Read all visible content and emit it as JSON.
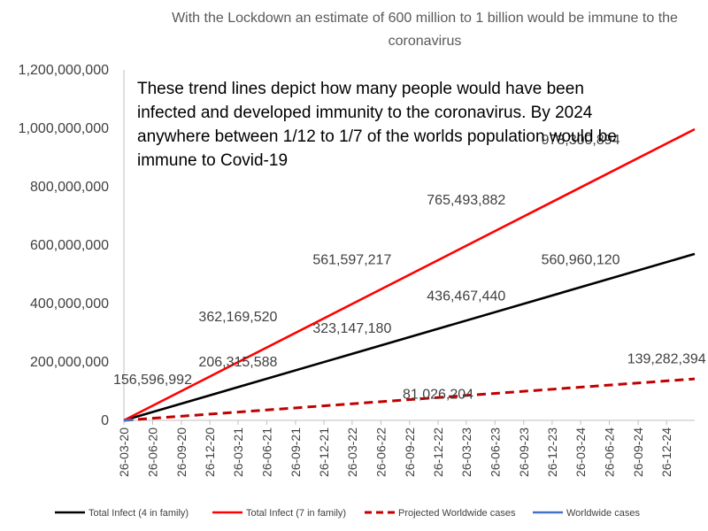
{
  "chart_data": {
    "type": "line",
    "title": "With the Lockdown an estimate of 600 million to 1 billion would be immune to the coronavirus",
    "annotation": "These trend lines depict how many people would have been infected and developed immunity to the coronavirus. By 2024 anywhere between 1/12 to 1/7 of the worlds population would be immune to Covid-19",
    "xlabel": "",
    "ylabel": "",
    "ylim": [
      0,
      1200000000
    ],
    "y_ticks": [
      "0",
      "200,000,000",
      "400,000,000",
      "600,000,000",
      "800,000,000",
      "1,000,000,000",
      "1,200,000,000"
    ],
    "x_ticks": [
      "26-03-20",
      "26-06-20",
      "26-09-20",
      "26-12-20",
      "26-03-21",
      "26-06-21",
      "26-09-21",
      "26-12-21",
      "26-03-22",
      "26-06-22",
      "26-09-22",
      "26-12-22",
      "26-03-23",
      "26-06-23",
      "26-09-23",
      "26-12-23",
      "26-03-24",
      "26-06-24",
      "26-09-24",
      "26-12-24"
    ],
    "x_range": [
      "26-03-20",
      "26-03-25"
    ],
    "grid": false,
    "legend": "bottom",
    "series": [
      {
        "name": "Total Infect (4 in family)",
        "color": "#000000",
        "dash": "solid",
        "points": [
          [
            "26-03-20",
            0
          ],
          [
            "26-03-25",
            570000000
          ]
        ]
      },
      {
        "name": "Total Infect (7 in family)",
        "color": "#ff0000",
        "dash": "solid",
        "points": [
          [
            "26-03-20",
            0
          ],
          [
            "26-03-25",
            997000000
          ]
        ]
      },
      {
        "name": "Projected Worldwide cases",
        "color": "#c00000",
        "dash": "dashed",
        "points": [
          [
            "26-03-20",
            0
          ],
          [
            "26-03-25",
            142000000
          ]
        ]
      },
      {
        "name": "Worldwide cases",
        "color": "#4472c4",
        "dash": "solid",
        "points": [
          [
            "26-03-20",
            0
          ],
          [
            "26-04-20",
            2400000
          ]
        ]
      }
    ],
    "data_labels": [
      {
        "text": "156,596,992",
        "x": "26-06-20",
        "y": 125000000
      },
      {
        "text": "206,315,588",
        "x": "26-03-21",
        "y": 185000000
      },
      {
        "text": "323,147,180",
        "x": "26-03-22",
        "y": 300000000
      },
      {
        "text": "436,467,440",
        "x": "26-03-23",
        "y": 410000000
      },
      {
        "text": "560,960,120",
        "x": "26-03-24",
        "y": 535000000
      },
      {
        "text": "362,169,520",
        "x": "26-03-21",
        "y": 340000000
      },
      {
        "text": "561,597,217",
        "x": "26-03-22",
        "y": 535000000
      },
      {
        "text": "765,493,882",
        "x": "26-03-23",
        "y": 740000000
      },
      {
        "text": "973,300,894",
        "x": "26-03-24",
        "y": 945000000
      },
      {
        "text": "81,026,204",
        "x": "26-12-22",
        "y": 75000000
      },
      {
        "text": "139,282,394",
        "x": "26-12-24",
        "y": 195000000
      }
    ]
  }
}
